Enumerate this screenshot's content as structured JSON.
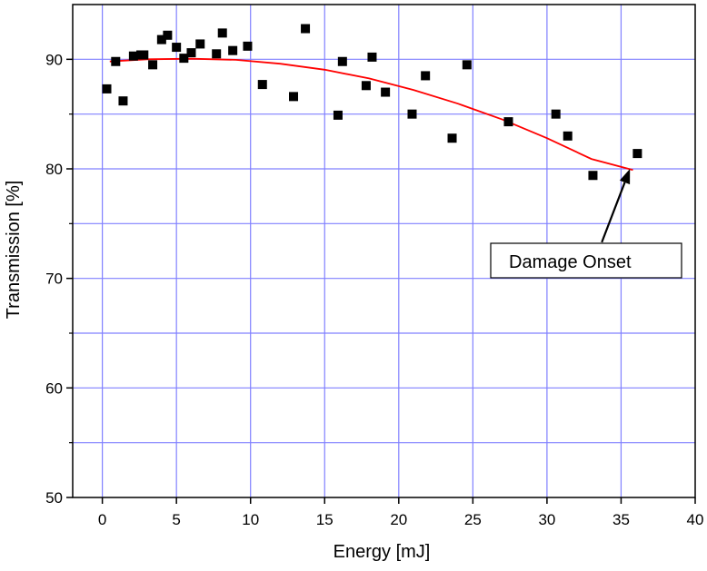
{
  "chart_data": {
    "type": "scatter",
    "xlabel": "Energy [mJ]",
    "ylabel": "Transmission [%]",
    "xlim": [
      -2,
      40
    ],
    "ylim": [
      50,
      95
    ],
    "x_ticks": [
      0,
      5,
      10,
      15,
      20,
      25,
      30,
      35,
      40
    ],
    "y_ticks": [
      50,
      60,
      70,
      80,
      90
    ],
    "x_grid_lines": [
      0,
      5,
      10,
      15,
      20,
      25,
      30,
      35
    ],
    "y_grid_lines": [
      55,
      60,
      65,
      70,
      75,
      80,
      85,
      90
    ],
    "grid": true,
    "grid_color": "#8080ff",
    "marker_color": "#000000",
    "fit_color": "#ff0000",
    "points": [
      {
        "x": 0.3,
        "y": 87.3
      },
      {
        "x": 0.9,
        "y": 89.8
      },
      {
        "x": 1.4,
        "y": 86.2
      },
      {
        "x": 2.1,
        "y": 90.3
      },
      {
        "x": 2.6,
        "y": 90.4
      },
      {
        "x": 2.8,
        "y": 90.4
      },
      {
        "x": 3.4,
        "y": 89.5
      },
      {
        "x": 4.0,
        "y": 91.8
      },
      {
        "x": 4.4,
        "y": 92.2
      },
      {
        "x": 5.0,
        "y": 91.1
      },
      {
        "x": 5.5,
        "y": 90.1
      },
      {
        "x": 6.0,
        "y": 90.6
      },
      {
        "x": 6.6,
        "y": 91.4
      },
      {
        "x": 7.7,
        "y": 90.5
      },
      {
        "x": 8.1,
        "y": 92.4
      },
      {
        "x": 8.8,
        "y": 90.8
      },
      {
        "x": 9.8,
        "y": 91.2
      },
      {
        "x": 10.8,
        "y": 87.7
      },
      {
        "x": 12.9,
        "y": 86.6
      },
      {
        "x": 13.7,
        "y": 92.8
      },
      {
        "x": 15.9,
        "y": 84.9
      },
      {
        "x": 16.2,
        "y": 89.8
      },
      {
        "x": 17.8,
        "y": 87.6
      },
      {
        "x": 18.2,
        "y": 90.2
      },
      {
        "x": 19.1,
        "y": 87.0
      },
      {
        "x": 20.9,
        "y": 85.0
      },
      {
        "x": 21.8,
        "y": 88.5
      },
      {
        "x": 23.6,
        "y": 82.8
      },
      {
        "x": 24.6,
        "y": 89.5
      },
      {
        "x": 27.4,
        "y": 84.3
      },
      {
        "x": 30.6,
        "y": 85.0
      },
      {
        "x": 31.4,
        "y": 83.0
      },
      {
        "x": 33.1,
        "y": 79.4
      },
      {
        "x": 36.1,
        "y": 81.4
      }
    ],
    "fit_curve": {
      "x": [
        0.5,
        3,
        6,
        9,
        12,
        15,
        18,
        21,
        24,
        27,
        30,
        33,
        35.8
      ],
      "y": [
        89.8,
        90.0,
        90.05,
        89.95,
        89.6,
        89.05,
        88.25,
        87.2,
        85.95,
        84.5,
        82.8,
        80.9,
        79.9
      ]
    },
    "annotation": {
      "text": "Damage Onset",
      "arrow_from": {
        "x": 33.7,
        "y": 73.3
      },
      "arrow_to": {
        "x": 35.6,
        "y": 80.0
      }
    }
  }
}
